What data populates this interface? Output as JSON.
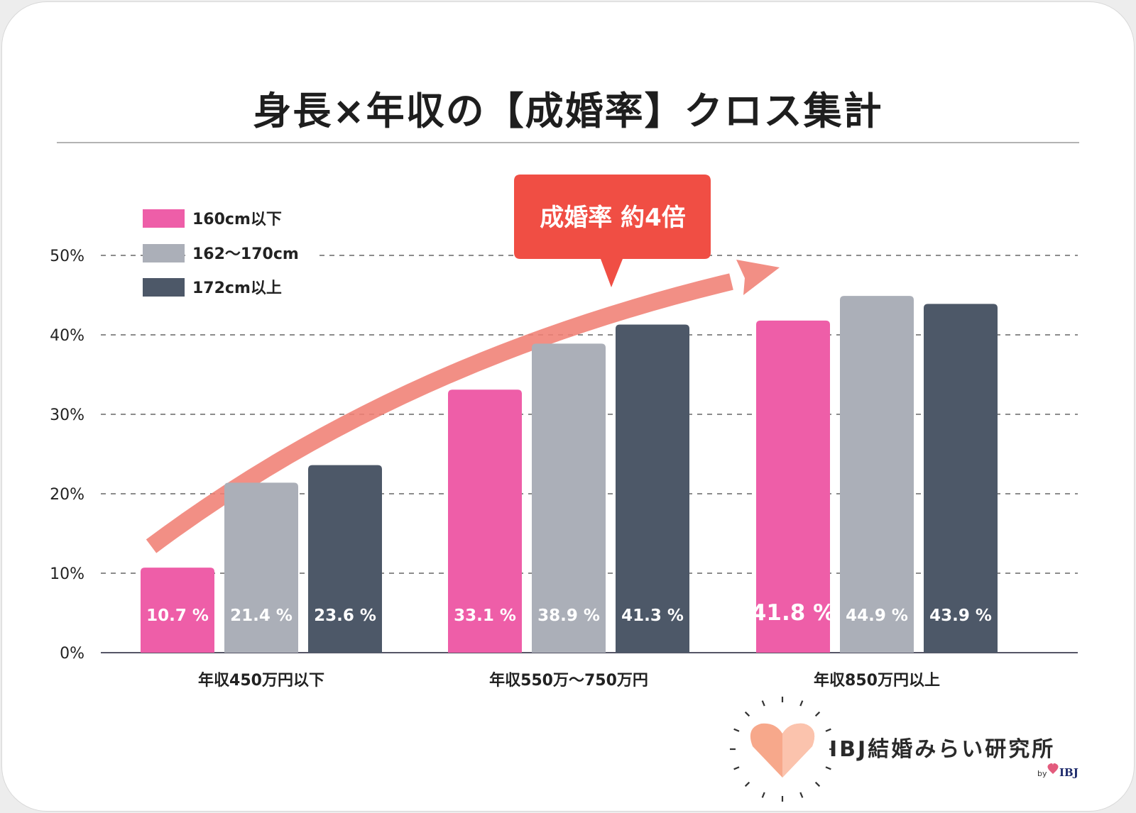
{
  "title": "身長×年収の【成婚率】クロス集計",
  "colors": {
    "series_low": "#ee5ea8",
    "series_mid": "#abafb8",
    "series_high": "#4d5868",
    "arrow": "#f07f74",
    "callout": "#f04e44",
    "axis": "#555566",
    "grid": "#666666",
    "logo_heart": "#f7a88b"
  },
  "callout_text": "成婚率 約4倍",
  "logo": {
    "name": "IBJ結婚みらい研究所",
    "by": "by",
    "brand": "IBJ"
  },
  "chart_data": {
    "type": "bar",
    "title": "身長×年収の【成婚率】クロス集計",
    "categories": [
      "年収450万円以下",
      "年収550万〜750万円",
      "年収850万円以上"
    ],
    "series": [
      {
        "name": "160cm以下",
        "values": [
          10.7,
          33.1,
          41.8
        ]
      },
      {
        "name": "162〜170cm",
        "values": [
          21.4,
          38.9,
          44.9
        ]
      },
      {
        "name": "172cm以上",
        "values": [
          23.6,
          41.3,
          43.9
        ]
      }
    ],
    "value_unit": "%",
    "ylim": [
      0,
      50
    ],
    "yticks": [
      "0%",
      "10%",
      "20%",
      "30%",
      "40%",
      "50%"
    ],
    "grid": true,
    "legend_position": "top-left"
  }
}
